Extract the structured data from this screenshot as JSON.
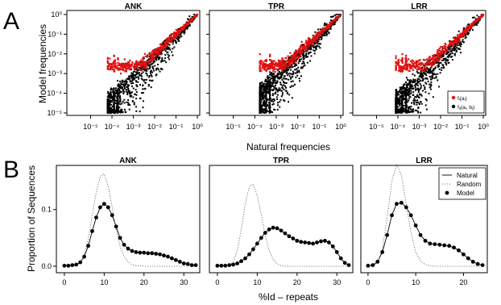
{
  "colors": {
    "natural_points": "#000000",
    "model_points": "#e01010",
    "panel_frame": "#000000"
  },
  "panel_labels": [
    "A",
    "B"
  ],
  "top_row": {
    "ylabel": "Model frequencies",
    "xlabel": "Natural frequencies",
    "legend": {
      "item1": "fᵢ(aᵢ)",
      "item2": "fᵢⱼ(aᵢ, bⱼ)"
    }
  },
  "bottom_row": {
    "ylabel": "Proportion of Sequences",
    "xlabel": "%Id – repeats",
    "legend": {
      "natural": "Natural",
      "random": "Random",
      "model": "Model"
    }
  },
  "chart_data": [
    {
      "type": "scatter",
      "title": "ANK",
      "log_x": true,
      "log_y": true,
      "xlim": [
        1e-06,
        1
      ],
      "ylim": [
        1e-05,
        1
      ],
      "x_ticks": [
        "10⁻⁵",
        "10⁻⁴",
        "10⁻³",
        "10⁻²",
        "10⁻¹",
        "10⁰"
      ],
      "y_ticks": [
        "10⁻⁵",
        "10⁻⁴",
        "10⁻³",
        "10⁻²",
        "10⁻¹",
        "10⁰"
      ],
      "series": [
        {
          "name": "fᵢ(aᵢ)",
          "color": "#e01010",
          "description": "single-site frequencies lying close to the diagonal"
        },
        {
          "name": "fᵢⱼ(aᵢ, bⱼ)",
          "color": "#000000",
          "description": "pair frequencies, broad cloud below the diagonal at low natural frequencies"
        }
      ],
      "low_x_columns": [
        6.3e-05,
        0.000125,
        0.00019
      ]
    },
    {
      "type": "scatter",
      "title": "TPR",
      "log_x": true,
      "log_y": true,
      "xlim": [
        1e-06,
        1
      ],
      "ylim": [
        1e-05,
        1
      ],
      "x_ticks": [
        "10⁻⁵",
        "10⁻⁴",
        "10⁻³",
        "10⁻²",
        "10⁻¹",
        "10⁰"
      ],
      "low_x_columns": [
        0.00017,
        0.00034,
        0.0005
      ]
    },
    {
      "type": "scatter",
      "title": "LRR",
      "log_x": true,
      "log_y": true,
      "xlim": [
        1e-06,
        1
      ],
      "ylim": [
        1e-05,
        1
      ],
      "x_ticks": [
        "10⁻⁵",
        "10⁻⁴",
        "10⁻³",
        "10⁻²",
        "10⁻¹",
        "10⁰"
      ],
      "low_x_columns": [
        8e-05,
        0.00016,
        0.00024
      ]
    },
    {
      "type": "line",
      "title": "ANK",
      "xlim": [
        -2,
        34
      ],
      "ylim": [
        0,
        0.175
      ],
      "x_ticks": [
        0,
        10,
        20,
        30
      ],
      "y_ticks": [
        0.0,
        0.1
      ],
      "y_tick_labels": [
        "0.0",
        "0.1"
      ],
      "series": [
        {
          "name": "Natural",
          "style": "solid",
          "x": [
            0,
            1,
            2,
            3,
            4,
            5,
            6,
            7,
            8,
            9,
            10,
            11,
            12,
            13,
            14,
            15,
            16,
            17,
            18,
            19,
            20,
            21,
            22,
            23,
            24,
            25,
            26,
            27,
            28,
            29,
            30,
            31,
            32,
            33
          ],
          "y": [
            0.001,
            0.001,
            0.002,
            0.003,
            0.007,
            0.017,
            0.036,
            0.062,
            0.086,
            0.104,
            0.11,
            0.104,
            0.09,
            0.07,
            0.05,
            0.038,
            0.031,
            0.027,
            0.025,
            0.024,
            0.024,
            0.023,
            0.023,
            0.022,
            0.021,
            0.019,
            0.017,
            0.014,
            0.011,
            0.008,
            0.005,
            0.004,
            0.002,
            0.002
          ]
        },
        {
          "name": "Random",
          "style": "dotted",
          "x": [
            0,
            1,
            2,
            3,
            4,
            5,
            6,
            7,
            8,
            9,
            10,
            11,
            12,
            13,
            14,
            15,
            16,
            17,
            18,
            19,
            20,
            21,
            22,
            23,
            24,
            25,
            26,
            27,
            28,
            29,
            30,
            31,
            32,
            33
          ],
          "y": [
            0,
            0,
            0.001,
            0.002,
            0.006,
            0.02,
            0.048,
            0.09,
            0.13,
            0.158,
            0.163,
            0.142,
            0.105,
            0.065,
            0.035,
            0.017,
            0.008,
            0.003,
            0.001,
            0.001,
            0,
            0,
            0,
            0,
            0,
            0,
            0,
            0,
            0,
            0,
            0,
            0,
            0,
            0
          ]
        },
        {
          "name": "Model",
          "style": "points",
          "x": [
            0,
            1,
            2,
            3,
            4,
            5,
            6,
            7,
            8,
            9,
            10,
            11,
            12,
            13,
            14,
            15,
            16,
            17,
            18,
            19,
            20,
            21,
            22,
            23,
            24,
            25,
            26,
            27,
            28,
            29,
            30,
            31,
            32,
            33
          ],
          "y": [
            0.001,
            0.001,
            0.002,
            0.003,
            0.007,
            0.017,
            0.036,
            0.062,
            0.086,
            0.104,
            0.11,
            0.104,
            0.09,
            0.07,
            0.05,
            0.038,
            0.031,
            0.027,
            0.025,
            0.024,
            0.024,
            0.023,
            0.023,
            0.022,
            0.021,
            0.019,
            0.017,
            0.014,
            0.011,
            0.008,
            0.005,
            0.004,
            0.002,
            0.002
          ]
        }
      ]
    },
    {
      "type": "line",
      "title": "TPR",
      "xlim": [
        -2,
        34
      ],
      "ylim": [
        0,
        0.175
      ],
      "x_ticks": [
        0,
        10,
        20,
        30
      ],
      "series": [
        {
          "name": "Natural",
          "style": "solid",
          "x": [
            0,
            1,
            2,
            3,
            4,
            5,
            6,
            7,
            8,
            9,
            10,
            11,
            12,
            13,
            14,
            15,
            16,
            17,
            18,
            19,
            20,
            21,
            22,
            23,
            24,
            25,
            26,
            27,
            28,
            29,
            30,
            31,
            32,
            33
          ],
          "y": [
            0.001,
            0.001,
            0.001,
            0.002,
            0.003,
            0.005,
            0.009,
            0.014,
            0.021,
            0.03,
            0.04,
            0.05,
            0.059,
            0.065,
            0.068,
            0.067,
            0.063,
            0.058,
            0.053,
            0.049,
            0.045,
            0.043,
            0.042,
            0.041,
            0.04,
            0.042,
            0.044,
            0.045,
            0.042,
            0.035,
            0.025,
            0.014,
            0.006,
            0.002
          ]
        },
        {
          "name": "Random",
          "style": "dotted",
          "x": [
            0,
            1,
            2,
            3,
            4,
            5,
            6,
            7,
            8,
            9,
            10,
            11,
            12,
            13,
            14,
            15,
            16,
            17,
            18,
            19,
            20,
            21,
            22,
            23,
            24,
            25,
            26,
            27,
            28,
            29,
            30,
            31,
            32,
            33
          ],
          "y": [
            0,
            0,
            0.001,
            0.002,
            0.008,
            0.028,
            0.065,
            0.11,
            0.14,
            0.145,
            0.125,
            0.09,
            0.055,
            0.028,
            0.012,
            0.004,
            0.001,
            0,
            0,
            0,
            0,
            0,
            0,
            0,
            0,
            0,
            0,
            0,
            0,
            0,
            0,
            0,
            0,
            0
          ]
        },
        {
          "name": "Model",
          "style": "points",
          "x": [
            0,
            1,
            2,
            3,
            4,
            5,
            6,
            7,
            8,
            9,
            10,
            11,
            12,
            13,
            14,
            15,
            16,
            17,
            18,
            19,
            20,
            21,
            22,
            23,
            24,
            25,
            26,
            27,
            28,
            29,
            30,
            31,
            32,
            33
          ],
          "y": [
            0.001,
            0.001,
            0.001,
            0.002,
            0.003,
            0.005,
            0.009,
            0.014,
            0.021,
            0.03,
            0.04,
            0.05,
            0.059,
            0.065,
            0.068,
            0.067,
            0.063,
            0.058,
            0.053,
            0.049,
            0.045,
            0.043,
            0.042,
            0.041,
            0.04,
            0.042,
            0.044,
            0.045,
            0.042,
            0.035,
            0.025,
            0.014,
            0.006,
            0.002
          ]
        }
      ]
    },
    {
      "type": "line",
      "title": "LRR",
      "xlim": [
        -1.5,
        25
      ],
      "ylim": [
        0,
        0.175
      ],
      "x_ticks": [
        0,
        10,
        20
      ],
      "series": [
        {
          "name": "Natural",
          "style": "solid",
          "x": [
            0,
            1,
            2,
            3,
            4,
            5,
            6,
            7,
            8,
            9,
            10,
            11,
            12,
            13,
            14,
            15,
            16,
            17,
            18,
            19,
            20,
            21,
            22,
            23,
            24
          ],
          "y": [
            0.001,
            0.002,
            0.008,
            0.025,
            0.055,
            0.09,
            0.11,
            0.112,
            0.104,
            0.09,
            0.072,
            0.055,
            0.045,
            0.04,
            0.039,
            0.038,
            0.037,
            0.036,
            0.033,
            0.028,
            0.021,
            0.014,
            0.008,
            0.004,
            0.002
          ]
        },
        {
          "name": "Random",
          "style": "dotted",
          "x": [
            0,
            1,
            2,
            3,
            4,
            5,
            6,
            7,
            8,
            9,
            10,
            11,
            12,
            13,
            14,
            15,
            16,
            17,
            18,
            19,
            20,
            21,
            22,
            23,
            24
          ],
          "y": [
            0,
            0.001,
            0.006,
            0.03,
            0.085,
            0.15,
            0.18,
            0.16,
            0.11,
            0.06,
            0.025,
            0.009,
            0.003,
            0.001,
            0,
            0,
            0,
            0,
            0,
            0,
            0,
            0,
            0,
            0,
            0
          ]
        },
        {
          "name": "Model",
          "style": "points",
          "x": [
            0,
            1,
            2,
            3,
            4,
            5,
            6,
            7,
            8,
            9,
            10,
            11,
            12,
            13,
            14,
            15,
            16,
            17,
            18,
            19,
            20,
            21,
            22,
            23,
            24
          ],
          "y": [
            0.001,
            0.002,
            0.008,
            0.025,
            0.055,
            0.09,
            0.11,
            0.112,
            0.104,
            0.09,
            0.072,
            0.055,
            0.045,
            0.04,
            0.039,
            0.038,
            0.037,
            0.036,
            0.033,
            0.028,
            0.021,
            0.014,
            0.008,
            0.004,
            0.002
          ]
        }
      ]
    }
  ]
}
